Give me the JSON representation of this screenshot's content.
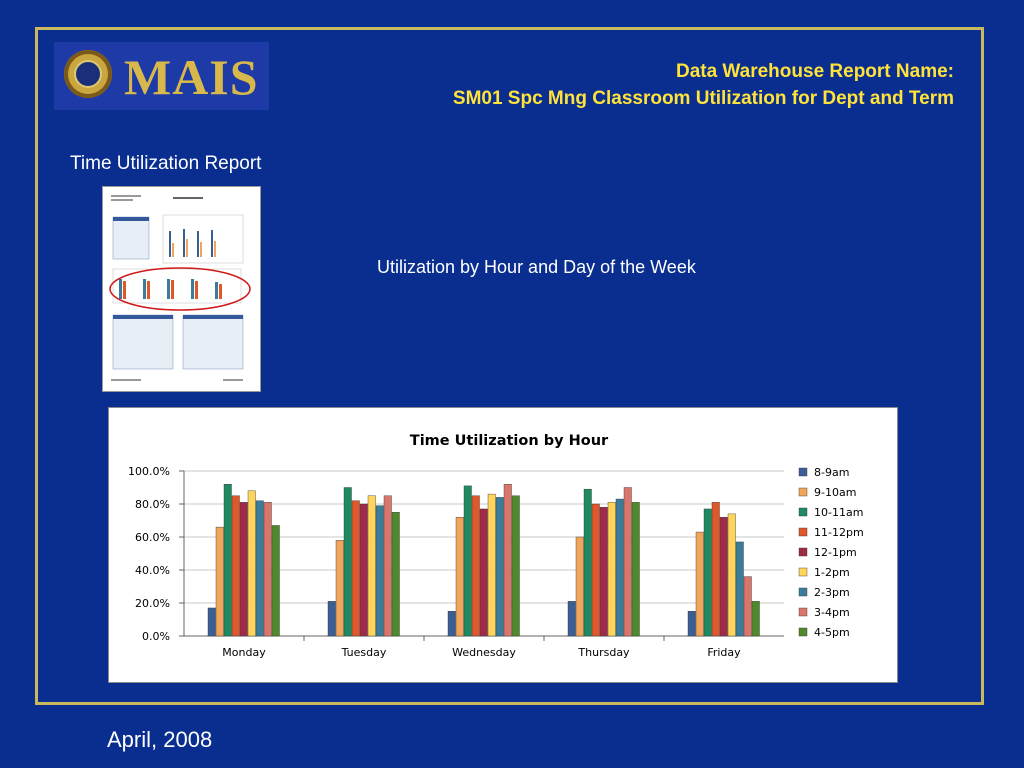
{
  "header": {
    "logo_text": "MAIS",
    "title_line1": "Data Warehouse Report Name:",
    "title_line2": "SM01 Spc Mng Classroom Utilization for Dept and Term"
  },
  "subhead": "Time Utilization Report",
  "caption": "Utilization by Hour and Day of the Week",
  "footer_date": "April, 2008",
  "chart_data": {
    "type": "bar",
    "title": "Time Utilization by Hour",
    "xlabel": "",
    "ylabel": "",
    "ylim": [
      0,
      100
    ],
    "yticks": [
      "0.0%",
      "20.0%",
      "40.0%",
      "60.0%",
      "80.0%",
      "100.0%"
    ],
    "grid": true,
    "legend": "right",
    "categories": [
      "Monday",
      "Tuesday",
      "Wednesday",
      "Thursday",
      "Friday"
    ],
    "series": [
      {
        "name": "8-9am",
        "color": "#3b5f95",
        "values": [
          17,
          21,
          15,
          21,
          15
        ]
      },
      {
        "name": "9-10am",
        "color": "#f0a55a",
        "values": [
          66,
          58,
          72,
          60,
          63
        ]
      },
      {
        "name": "10-11am",
        "color": "#1f8a5f",
        "values": [
          92,
          90,
          91,
          89,
          77
        ]
      },
      {
        "name": "11-12pm",
        "color": "#e0572a",
        "values": [
          85,
          82,
          85,
          80,
          81
        ]
      },
      {
        "name": "12-1pm",
        "color": "#a02a48",
        "values": [
          81,
          80,
          77,
          78,
          72
        ]
      },
      {
        "name": "1-2pm",
        "color": "#ffd45a",
        "values": [
          88,
          85,
          86,
          81,
          74
        ]
      },
      {
        "name": "2-3pm",
        "color": "#3a7c9a",
        "values": [
          82,
          79,
          84,
          83,
          57
        ]
      },
      {
        "name": "3-4pm",
        "color": "#d9756a",
        "values": [
          81,
          85,
          92,
          90,
          36
        ]
      },
      {
        "name": "4-5pm",
        "color": "#4e8a2c",
        "values": [
          67,
          75,
          85,
          81,
          21
        ]
      }
    ]
  }
}
